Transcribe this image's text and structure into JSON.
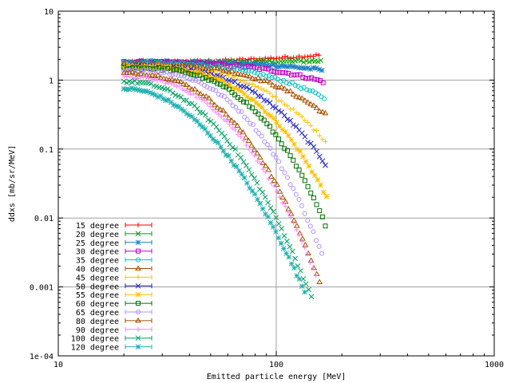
{
  "chart_data": {
    "type": "scatter",
    "xlabel": "Emitted particle energy [MeV]",
    "ylabel": "ddxs [mb/sr/MeV]",
    "xscale": "log",
    "yscale": "log",
    "xlim": [
      10,
      1000
    ],
    "ylim": [
      0.0001,
      10
    ],
    "x_ticks": [
      {
        "v": 10,
        "label": "10"
      },
      {
        "v": 100,
        "label": "100"
      },
      {
        "v": 1000,
        "label": "1000"
      }
    ],
    "y_ticks": [
      {
        "v": 10,
        "label": "10"
      },
      {
        "v": 1,
        "label": "1"
      },
      {
        "v": 0.1,
        "label": "0.1"
      },
      {
        "v": 0.01,
        "label": "0.01"
      },
      {
        "v": 0.001,
        "label": "0.001"
      },
      {
        "v": 0.0001,
        "label": "1e-04"
      }
    ],
    "grid": true,
    "legend_position": "bottom-left",
    "series": [
      {
        "name": "15 degree",
        "color": "#ff0000",
        "marker": "plus",
        "x_start": 20,
        "x_end": 157,
        "y_start": 1.8,
        "y_end": 2.3,
        "drop": 0,
        "curve": 2
      },
      {
        "name": "20 degree",
        "color": "#00a000",
        "marker": "x",
        "x_start": 20,
        "x_end": 160,
        "y_start": 1.8,
        "y_end": 1.9,
        "drop": 0,
        "curve": 2
      },
      {
        "name": "25 degree",
        "color": "#1f7fbf",
        "marker": "star",
        "x_start": 20,
        "x_end": 162,
        "y_start": 1.85,
        "y_end": 1.4,
        "drop": 0.4,
        "curve": 3
      },
      {
        "name": "30 degree",
        "color": "#c000c0",
        "marker": "square",
        "x_start": 20,
        "x_end": 164,
        "y_start": 1.8,
        "y_end": 0.95,
        "drop": 0.5,
        "curve": 3
      },
      {
        "name": "35 degree",
        "color": "#00c0c0",
        "marker": "circle",
        "x_start": 20,
        "x_end": 166,
        "y_start": 1.75,
        "y_end": 0.55,
        "drop": 0.6,
        "curve": 3
      },
      {
        "name": "40 degree",
        "color": "#a05000",
        "marker": "triangle",
        "x_start": 20,
        "x_end": 168,
        "y_start": 1.7,
        "y_end": 0.32,
        "drop": 0.8,
        "curve": 3
      },
      {
        "name": "45 degree",
        "color": "#ffc000",
        "marker": "plus",
        "x_start": 20,
        "x_end": 168,
        "y_start": 1.65,
        "y_end": 0.13,
        "drop": 1.2,
        "curve": 3
      },
      {
        "name": "50 degree",
        "color": "#2020c0",
        "marker": "x",
        "x_start": 20,
        "x_end": 168,
        "y_start": 1.6,
        "y_end": 0.06,
        "drop": 1.5,
        "curve": 3
      },
      {
        "name": "55 degree",
        "color": "#ffc000",
        "marker": "star",
        "x_start": 20,
        "x_end": 170,
        "y_start": 1.55,
        "y_end": 0.02,
        "drop": 2.2,
        "curve": 3
      },
      {
        "name": "60 degree",
        "color": "#007000",
        "marker": "square",
        "x_start": 20,
        "x_end": 168,
        "y_start": 1.5,
        "y_end": 0.008,
        "drop": 2.6,
        "curve": 3
      },
      {
        "name": "65 degree",
        "color": "#b090ff",
        "marker": "circle",
        "x_start": 20,
        "x_end": 162,
        "y_start": 1.4,
        "y_end": 0.003,
        "drop": 3.0,
        "curve": 2.8
      },
      {
        "name": "80 degree",
        "color": "#a05000",
        "marker": "triangle",
        "x_start": 20,
        "x_end": 158,
        "y_start": 1.25,
        "y_end": 0.0012,
        "drop": 3.4,
        "curve": 2.5
      },
      {
        "name": "90 degree",
        "color": "#ff80ff",
        "marker": "plus",
        "x_start": 20,
        "x_end": 152,
        "y_start": 1.1,
        "y_end": 0.0015,
        "drop": 3.3,
        "curve": 2.4
      },
      {
        "name": "100 degree",
        "color": "#00a060",
        "marker": "x",
        "x_start": 20,
        "x_end": 145,
        "y_start": 0.95,
        "y_end": 0.0007,
        "drop": 3.6,
        "curve": 2.2
      },
      {
        "name": "120 degree",
        "color": "#20b0b0",
        "marker": "star",
        "x_start": 20,
        "x_end": 135,
        "y_start": 0.75,
        "y_end": 0.00085,
        "drop": 3.3,
        "curve": 2.0
      }
    ]
  }
}
